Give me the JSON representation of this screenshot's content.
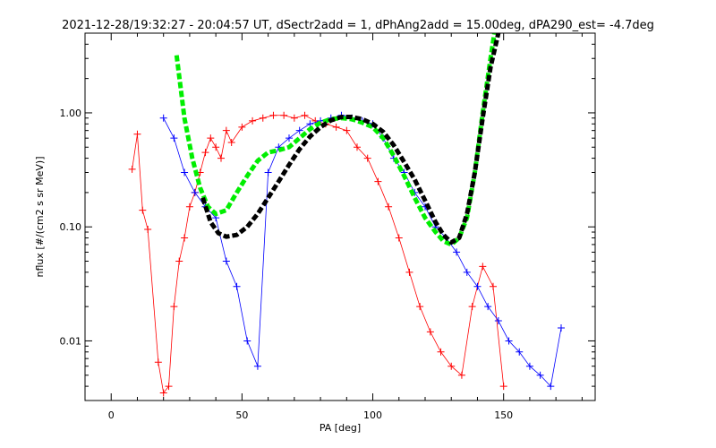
{
  "chart_data": {
    "type": "line",
    "title": "2021-12-28/19:32:27 - 20:04:57 UT, dSectr2add = 1, dPhAng2add = 15.00deg, dPA290_est=  -4.7deg",
    "xlabel": "PA [deg]",
    "ylabel": "nflux [#/(cm2 s sr MeV)]",
    "xlim": [
      -10,
      185
    ],
    "ylim": [
      0.003,
      5.0
    ],
    "y_scale": "log",
    "x_ticks": [
      0,
      50,
      100,
      150
    ],
    "x_tick_labels": [
      "0",
      "50",
      "100",
      "150"
    ],
    "y_ticks": [
      1.0,
      0.1,
      0.01
    ],
    "y_tick_labels": [
      "1.00",
      "0.10",
      "0.01"
    ],
    "grid": false,
    "colors": {
      "red_series": "#ff0000",
      "blue_series": "#0000ff",
      "green_fit": "#00ee00",
      "black_fit": "#000000",
      "axes": "#000000"
    },
    "series": [
      {
        "color": "#00ee00",
        "style": "dashed-thick",
        "x": [
          25,
          28,
          31,
          34,
          37,
          40,
          44,
          48,
          52,
          56,
          60,
          64,
          68,
          72,
          76,
          80,
          84,
          88,
          92,
          96,
          100,
          104,
          108,
          112,
          116,
          120,
          124,
          127,
          130,
          133,
          136,
          139,
          142,
          145,
          147
        ],
        "y": [
          3.2,
          0.9,
          0.4,
          0.22,
          0.15,
          0.13,
          0.14,
          0.2,
          0.28,
          0.38,
          0.45,
          0.47,
          0.5,
          0.6,
          0.72,
          0.82,
          0.88,
          0.9,
          0.88,
          0.82,
          0.75,
          0.6,
          0.42,
          0.28,
          0.18,
          0.12,
          0.09,
          0.075,
          0.07,
          0.08,
          0.12,
          0.3,
          1.0,
          3.0,
          6.0
        ]
      },
      {
        "color": "#000000",
        "style": "dashed-thick",
        "x": [
          35,
          38,
          41,
          44,
          48,
          52,
          56,
          60,
          64,
          68,
          72,
          76,
          80,
          84,
          88,
          92,
          96,
          100,
          104,
          108,
          112,
          116,
          120,
          124,
          127,
          130,
          133,
          136,
          139,
          142,
          145,
          148,
          150
        ],
        "y": [
          0.18,
          0.11,
          0.088,
          0.082,
          0.085,
          0.1,
          0.13,
          0.18,
          0.25,
          0.35,
          0.48,
          0.62,
          0.75,
          0.86,
          0.92,
          0.92,
          0.88,
          0.8,
          0.68,
          0.52,
          0.37,
          0.26,
          0.17,
          0.11,
          0.085,
          0.073,
          0.08,
          0.13,
          0.3,
          0.9,
          2.5,
          5.0,
          7.0
        ]
      }
    ],
    "marker_groups": [
      {
        "color": "#ff0000",
        "marker": "+",
        "x": [
          8,
          10,
          12,
          14,
          18,
          20,
          22,
          24,
          26,
          28,
          30,
          32,
          34,
          36,
          38,
          40,
          42,
          44,
          46,
          50,
          54,
          58,
          62,
          66,
          70,
          74,
          78,
          82,
          86,
          90,
          94,
          98,
          102,
          106,
          110,
          114,
          118,
          122,
          126,
          130,
          134,
          138,
          142,
          146,
          150
        ],
        "y": [
          0.32,
          0.65,
          0.14,
          0.095,
          0.0065,
          0.0035,
          0.004,
          0.02,
          0.05,
          0.08,
          0.15,
          0.2,
          0.3,
          0.45,
          0.6,
          0.5,
          0.4,
          0.7,
          0.55,
          0.75,
          0.85,
          0.9,
          0.95,
          0.95,
          0.9,
          0.95,
          0.85,
          0.8,
          0.75,
          0.7,
          0.5,
          0.4,
          0.25,
          0.15,
          0.08,
          0.04,
          0.02,
          0.012,
          0.008,
          0.006,
          0.005,
          0.02,
          0.045,
          0.03,
          0.004
        ]
      },
      {
        "color": "#0000ff",
        "marker": "+",
        "x": [
          20,
          24,
          28,
          32,
          36,
          40,
          44,
          48,
          52,
          56,
          60,
          64,
          68,
          72,
          76,
          80,
          84,
          88,
          92,
          96,
          100,
          104,
          108,
          112,
          116,
          120,
          124,
          128,
          132,
          136,
          140,
          144,
          148,
          152,
          156,
          160,
          164,
          168,
          172
        ],
        "y": [
          0.9,
          0.6,
          0.3,
          0.2,
          0.15,
          0.12,
          0.05,
          0.03,
          0.01,
          0.006,
          0.3,
          0.5,
          0.6,
          0.7,
          0.8,
          0.85,
          0.9,
          0.95,
          0.9,
          0.85,
          0.8,
          0.6,
          0.4,
          0.3,
          0.2,
          0.15,
          0.1,
          0.08,
          0.06,
          0.04,
          0.03,
          0.02,
          0.015,
          0.01,
          0.008,
          0.006,
          0.005,
          0.004,
          0.013
        ]
      }
    ]
  }
}
